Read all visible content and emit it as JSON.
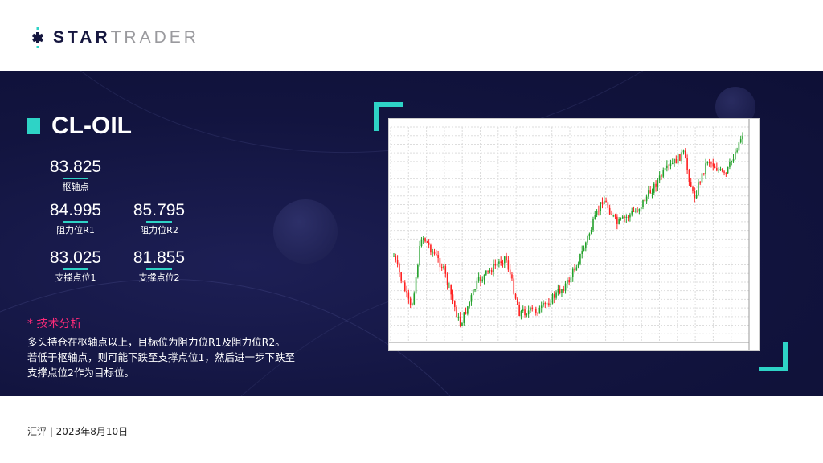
{
  "brand": {
    "logo_text_bold": "STAR",
    "logo_text_light": "TRADER"
  },
  "instrument": "CL-OIL",
  "levels": {
    "pivot": {
      "value": "83.825",
      "label": "枢轴点"
    },
    "r1": {
      "value": "84.995",
      "label": "阻力位R1"
    },
    "r2": {
      "value": "85.795",
      "label": "阻力位R2"
    },
    "s1": {
      "value": "83.025",
      "label": "支撑点位1"
    },
    "s2": {
      "value": "81.855",
      "label": "支撑点位2"
    }
  },
  "analysis": {
    "heading": "* 技术分析",
    "line1": "多头持仓在枢轴点以上，目标位为阻力位R1及阻力位R2。",
    "line2": "若低于枢轴点，则可能下跌至支撑点位1，然后进一步下跌至",
    "line3": "支撑点位2作为目标位。"
  },
  "footer": "汇评 | 2023年8月10日",
  "colors": {
    "accent": "#2ed3c6",
    "heading": "#ff2a7a",
    "background": "#12143f",
    "bull": "#22a02a",
    "bear": "#ff2020"
  }
}
